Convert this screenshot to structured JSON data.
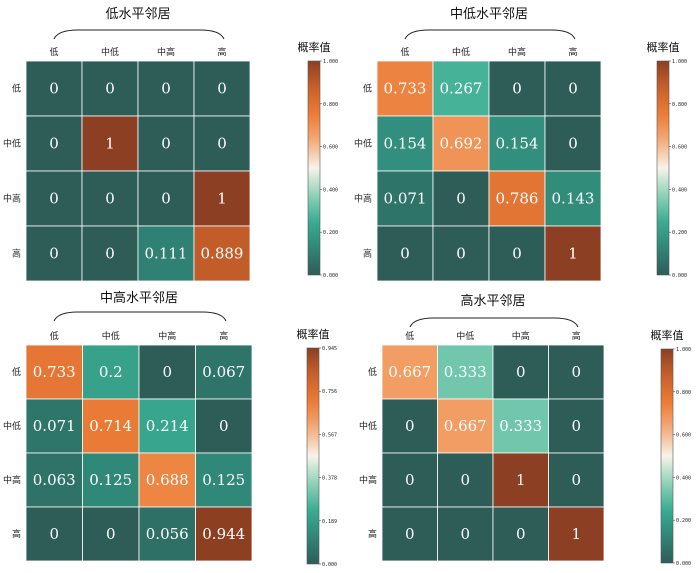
{
  "colormap": [
    "#2e5d58",
    "#2f8676",
    "#3aad93",
    "#8fd2b9",
    "#f7f3e9",
    "#f3ad7b",
    "#ec7c37",
    "#c9612b",
    "#8c3f22"
  ],
  "chart_data": [
    {
      "type": "heatmap",
      "title": "低水平邻居",
      "categories": [
        "低",
        "中低",
        "中高",
        "高"
      ],
      "rows": [
        "低",
        "中低",
        "中高",
        "高"
      ],
      "values": [
        [
          0,
          0,
          0,
          0
        ],
        [
          0,
          1,
          0,
          0
        ],
        [
          0,
          0,
          0,
          1
        ],
        [
          0,
          0,
          0.111,
          0.889
        ]
      ],
      "labels": [
        [
          "0",
          "0",
          "0",
          "0"
        ],
        [
          "0",
          "1",
          "0",
          "0"
        ],
        [
          "0",
          "0",
          "0",
          "1"
        ],
        [
          "0",
          "0",
          "0.111",
          "0.889"
        ]
      ],
      "colorbar": {
        "title": "概率值",
        "range": [
          0,
          1
        ],
        "ticks": [
          "0.000",
          "0.200",
          "0.400",
          "0.600",
          "0.800",
          "1.000"
        ]
      }
    },
    {
      "type": "heatmap",
      "title": "中低水平邻居",
      "categories": [
        "低",
        "中低",
        "中高",
        "高"
      ],
      "rows": [
        "低",
        "中低",
        "中高",
        "高"
      ],
      "values": [
        [
          0.733,
          0.267,
          0,
          0
        ],
        [
          0.154,
          0.692,
          0.154,
          0
        ],
        [
          0.071,
          0,
          0.786,
          0.143
        ],
        [
          0,
          0,
          0,
          1
        ]
      ],
      "labels": [
        [
          "0.733",
          "0.267",
          "0",
          "0"
        ],
        [
          "0.154",
          "0.692",
          "0.154",
          "0"
        ],
        [
          "0.071",
          "0",
          "0.786",
          "0.143"
        ],
        [
          "0",
          "0",
          "0",
          "1"
        ]
      ],
      "colorbar": {
        "title": "概率值",
        "range": [
          0,
          1
        ],
        "ticks": [
          "0.000",
          "0.200",
          "0.400",
          "0.600",
          "0.800",
          "1.000"
        ]
      }
    },
    {
      "type": "heatmap",
      "title": "中高水平邻居",
      "categories": [
        "低",
        "中低",
        "中高",
        "高"
      ],
      "rows": [
        "低",
        "中低",
        "中高",
        "高"
      ],
      "values": [
        [
          0.733,
          0.2,
          0,
          0.067
        ],
        [
          0.071,
          0.714,
          0.214,
          0
        ],
        [
          0.063,
          0.125,
          0.688,
          0.125
        ],
        [
          0,
          0,
          0.056,
          0.944
        ]
      ],
      "labels": [
        [
          "0.733",
          "0.2",
          "0",
          "0.067"
        ],
        [
          "0.071",
          "0.714",
          "0.214",
          "0"
        ],
        [
          "0.063",
          "0.125",
          "0.688",
          "0.125"
        ],
        [
          "0",
          "0",
          "0.056",
          "0.944"
        ]
      ],
      "colorbar": {
        "title": "概率值",
        "range": [
          0,
          0.945
        ],
        "ticks": [
          "0.000",
          "0.189",
          "0.378",
          "0.567",
          "0.756",
          "0.945"
        ]
      }
    },
    {
      "type": "heatmap",
      "title": "高水平邻居",
      "categories": [
        "低",
        "中低",
        "中高",
        "高"
      ],
      "rows": [
        "低",
        "中低",
        "中高",
        "高"
      ],
      "values": [
        [
          0.667,
          0.333,
          0,
          0
        ],
        [
          0,
          0.667,
          0.333,
          0
        ],
        [
          0,
          0,
          1,
          0
        ],
        [
          0,
          0,
          0,
          1
        ]
      ],
      "labels": [
        [
          "0.667",
          "0.333",
          "0",
          "0"
        ],
        [
          "0",
          "0.667",
          "0.333",
          "0"
        ],
        [
          "0",
          "0",
          "1",
          "0"
        ],
        [
          "0",
          "0",
          "0",
          "1"
        ]
      ],
      "colorbar": {
        "title": "概率值",
        "range": [
          0,
          1
        ],
        "ticks": [
          "0.000",
          "0.200",
          "0.400",
          "0.600",
          "0.800",
          "1.000"
        ]
      }
    }
  ]
}
